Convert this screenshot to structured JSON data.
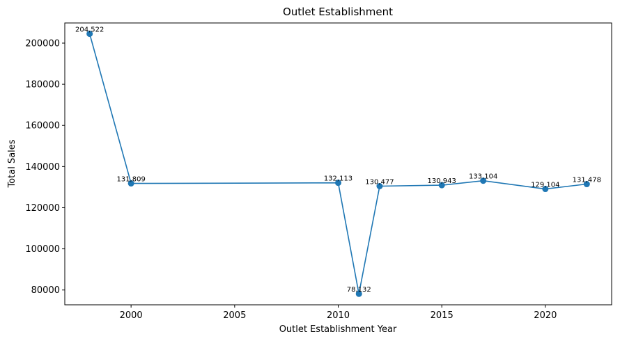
{
  "chart_data": {
    "type": "line",
    "title": "Outlet Establishment",
    "xlabel": "Outlet Establishment Year",
    "ylabel": "Total Sales",
    "x": [
      1998,
      2000,
      2010,
      2011,
      2012,
      2015,
      2017,
      2020,
      2022
    ],
    "y": [
      204522,
      131809,
      132113,
      78132,
      130477,
      130943,
      133104,
      129104,
      131478
    ],
    "data_labels": [
      "204,522",
      "131,809",
      "132,113",
      "78,132",
      "130,477",
      "130,943",
      "133,104",
      "129,104",
      "131,478"
    ],
    "xlim": [
      1996.8,
      2023.2
    ],
    "ylim": [
      72800,
      209800
    ],
    "xticks": [
      2000,
      2005,
      2010,
      2015,
      2020
    ],
    "xtick_labels": [
      "2000",
      "2005",
      "2010",
      "2015",
      "2020"
    ],
    "yticks": [
      80000,
      100000,
      120000,
      140000,
      160000,
      180000,
      200000
    ],
    "ytick_labels": [
      "80000",
      "100000",
      "120000",
      "140000",
      "160000",
      "180000",
      "200000"
    ],
    "color": "#1f77b4",
    "marker": "circle",
    "grid": false,
    "legend": false
  }
}
